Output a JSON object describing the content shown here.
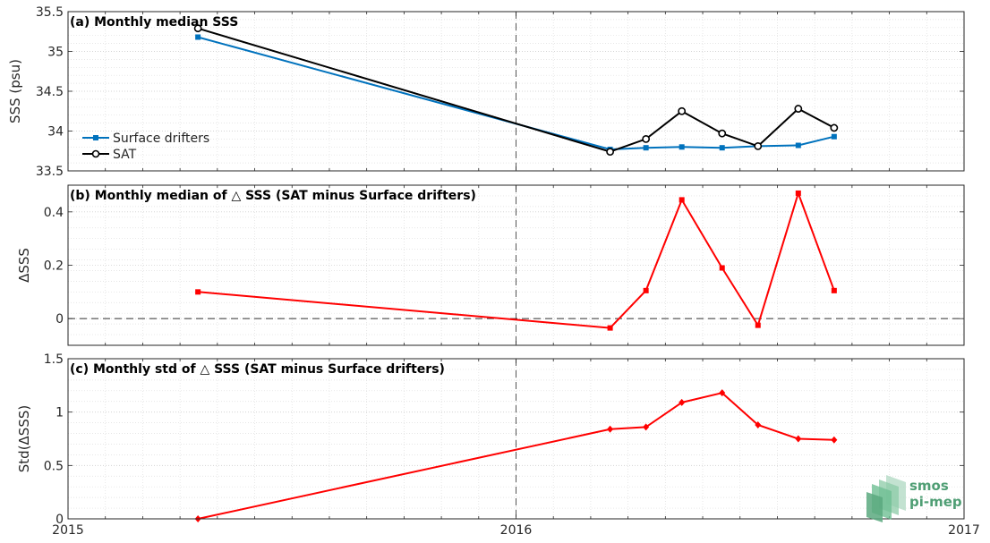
{
  "x_ticks": [
    "2015",
    "2016",
    "2017"
  ],
  "logo": {
    "line1": "smos",
    "line2": "pi-mep",
    "color": "#4f9e74"
  },
  "chart_data": [
    {
      "type": "line",
      "title": "(a) Monthly median SSS",
      "xlabel": "",
      "ylabel": "SSS (psu)",
      "xlim": [
        2015.0,
        2017.0
      ],
      "ylim": [
        33.5,
        35.5
      ],
      "y_ticks": [
        "33.5",
        "34",
        "34.5",
        "35",
        "35.5"
      ],
      "y_tick_values": [
        33.5,
        34,
        34.5,
        35,
        35.5
      ],
      "x_tick_values": [
        2015,
        2016,
        2017
      ],
      "grid": true,
      "minor_grid": true,
      "vline_x": 2016.0,
      "legend_position": "lower-left",
      "series": [
        {
          "name": "Surface drifters",
          "color": "#0072bd",
          "marker": "filled-square",
          "x": [
            2015.29,
            2016.21,
            2016.29,
            2016.37,
            2016.46,
            2016.54,
            2016.63,
            2016.71
          ],
          "values": [
            35.18,
            33.77,
            33.79,
            33.8,
            33.79,
            33.81,
            33.82,
            33.93
          ]
        },
        {
          "name": "SAT",
          "color": "#000000",
          "marker": "open-circle",
          "x": [
            2015.29,
            2016.21,
            2016.29,
            2016.37,
            2016.46,
            2016.54,
            2016.63,
            2016.71
          ],
          "values": [
            35.29,
            33.74,
            33.9,
            34.25,
            33.97,
            33.81,
            34.28,
            34.04
          ]
        }
      ]
    },
    {
      "type": "line",
      "title": "(b) Monthly median of △ SSS (SAT minus Surface drifters)",
      "xlabel": "",
      "ylabel": "ΔSSS",
      "xlim": [
        2015.0,
        2017.0
      ],
      "ylim": [
        -0.1,
        0.5
      ],
      "y_ticks": [
        "0",
        "0.2",
        "0.4"
      ],
      "y_tick_values": [
        0,
        0.2,
        0.4
      ],
      "x_tick_values": [
        2015,
        2016,
        2017
      ],
      "grid": true,
      "minor_grid": true,
      "vline_x": 2016.0,
      "hline_y": 0,
      "series": [
        {
          "color": "#ff0000",
          "marker": "filled-square",
          "x": [
            2015.29,
            2016.21,
            2016.29,
            2016.37,
            2016.46,
            2016.54,
            2016.63,
            2016.71
          ],
          "values": [
            0.1,
            -0.035,
            0.105,
            0.445,
            0.19,
            -0.025,
            0.47,
            0.105
          ]
        }
      ]
    },
    {
      "type": "line",
      "title": "(c) Monthly std of △ SSS (SAT minus Surface drifters)",
      "xlabel": "",
      "ylabel": "Std(ΔSSS)",
      "xlim": [
        2015.0,
        2017.0
      ],
      "ylim": [
        0,
        1.5
      ],
      "y_ticks": [
        "0",
        "0.5",
        "1",
        "1.5"
      ],
      "y_tick_values": [
        0,
        0.5,
        1,
        1.5
      ],
      "x_tick_values": [
        2015,
        2016,
        2017
      ],
      "grid": true,
      "minor_grid": true,
      "vline_x": 2016.0,
      "series": [
        {
          "color": "#ff0000",
          "marker": "filled-diamond",
          "x": [
            2015.29,
            2016.21,
            2016.29,
            2016.37,
            2016.46,
            2016.54,
            2016.63,
            2016.71
          ],
          "values": [
            0.0,
            0.84,
            0.86,
            1.09,
            1.18,
            0.88,
            0.75,
            0.74
          ]
        }
      ]
    }
  ]
}
